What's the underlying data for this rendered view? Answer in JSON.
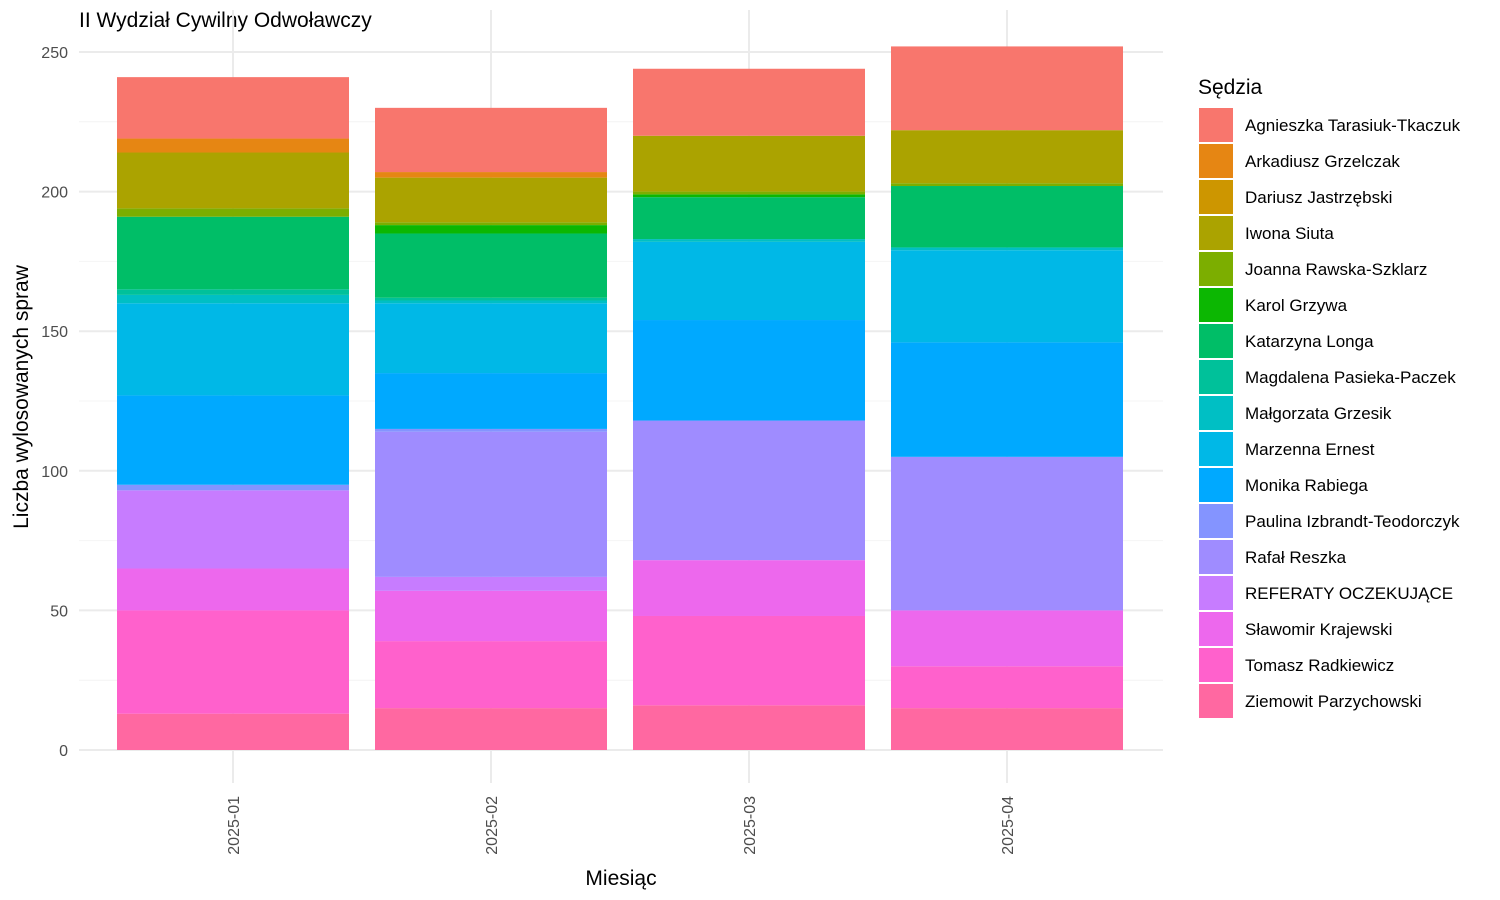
{
  "chart_data": {
    "type": "bar",
    "stacked": true,
    "title": "II Wydział Cywilny Odwoławczy",
    "xlabel": "Miesiąc",
    "ylabel": "Liczba wylosowanych spraw",
    "ylim": [
      0,
      260
    ],
    "yticks": [
      0,
      50,
      100,
      150,
      200,
      250
    ],
    "grid": true,
    "legend": {
      "title": "Sędzia",
      "position": "right"
    },
    "categories": [
      "2025-01",
      "2025-02",
      "2025-03",
      "2025-04"
    ],
    "series": [
      {
        "name": "Agnieszka Tarasiuk-Tkaczuk",
        "color": "#F8766D",
        "values": [
          22,
          23,
          24,
          30
        ]
      },
      {
        "name": "Arkadiusz Grzelczak",
        "color": "#E68613",
        "values": [
          5,
          2,
          0,
          0
        ]
      },
      {
        "name": "Dariusz Jastrzębski",
        "color": "#CD9600",
        "values": [
          0,
          0,
          0,
          0
        ]
      },
      {
        "name": "Iwona Siuta",
        "color": "#ABA300",
        "values": [
          20,
          16,
          20,
          19
        ]
      },
      {
        "name": "Joanna Rawska-Szklarz",
        "color": "#7CAE00",
        "values": [
          3,
          1,
          1,
          1
        ]
      },
      {
        "name": "Karol Grzywa",
        "color": "#0CB702",
        "values": [
          0,
          3,
          1,
          0
        ]
      },
      {
        "name": "Katarzyna Longa",
        "color": "#00BE67",
        "values": [
          26,
          23,
          15,
          22
        ]
      },
      {
        "name": "Magdalena Pasieka-Paczek",
        "color": "#00C19A",
        "values": [
          2,
          1,
          0,
          0
        ]
      },
      {
        "name": "Małgorzata Grzesik",
        "color": "#00BFC4",
        "values": [
          3,
          1,
          1,
          1
        ]
      },
      {
        "name": "Marzenna Ernest",
        "color": "#00B8E7",
        "values": [
          33,
          25,
          28,
          33
        ]
      },
      {
        "name": "Monika Rabiega",
        "color": "#00A9FF",
        "values": [
          32,
          20,
          36,
          41
        ]
      },
      {
        "name": "Paulina Izbrandt-Teodorczyk",
        "color": "#8494FF",
        "values": [
          2,
          1,
          0,
          0
        ]
      },
      {
        "name": "Rafał Reszka",
        "color": "#9F8CFF",
        "values": [
          0,
          52,
          50,
          55
        ]
      },
      {
        "name": "REFERATY OCZEKUJĄCE",
        "color": "#C77CFF",
        "values": [
          28,
          5,
          0,
          0
        ]
      },
      {
        "name": "Sławomir Krajewski",
        "color": "#ED68ED",
        "values": [
          15,
          18,
          20,
          20
        ]
      },
      {
        "name": "Tomasz Radkiewicz",
        "color": "#FF61CC",
        "values": [
          37,
          24,
          32,
          15
        ]
      },
      {
        "name": "Ziemowit Parzychowski",
        "color": "#FF68A1",
        "values": [
          13,
          15,
          16,
          15
        ]
      }
    ]
  }
}
